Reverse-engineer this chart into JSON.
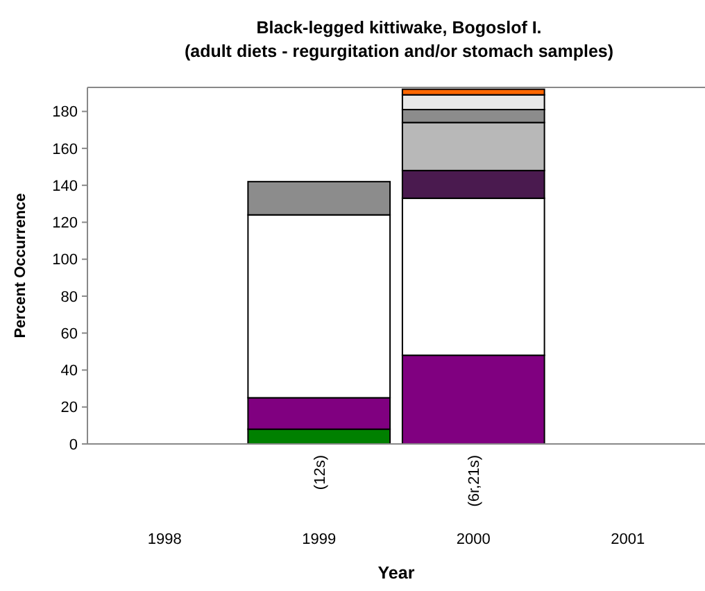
{
  "chart_data": {
    "type": "bar",
    "title": "Black-legged kittiwake, Bogoslof I.\n(adult diets - regurgitation and/or stomach samples)",
    "xlabel": "Year",
    "ylabel": "Percent Occurrence",
    "categories": [
      "1998",
      "1999",
      "2000",
      "2001"
    ],
    "stacked": true,
    "series": [
      {
        "color": "#008000",
        "values": [
          0,
          8,
          0,
          0
        ]
      },
      {
        "color": "#800080",
        "values": [
          0,
          17,
          48,
          0
        ]
      },
      {
        "color": "#ffffff",
        "values": [
          0,
          99,
          85,
          0
        ]
      },
      {
        "color": "#4a1a4f",
        "values": [
          0,
          0,
          15,
          0
        ]
      },
      {
        "color": "#b8b8b8",
        "values": [
          0,
          0,
          26,
          0
        ]
      },
      {
        "color": "#8c8c8c",
        "values": [
          0,
          18,
          7,
          0
        ]
      },
      {
        "color": "#e8e8e8",
        "values": [
          0,
          0,
          8,
          0
        ]
      },
      {
        "color": "#ff6600",
        "values": [
          0,
          0,
          3,
          0
        ]
      }
    ],
    "ylim": [
      0,
      193
    ],
    "yticks": [
      0,
      20,
      40,
      60,
      80,
      100,
      120,
      140,
      160,
      180
    ],
    "grid": false,
    "annotations": [
      "(12s)",
      "(6r,21s)"
    ]
  }
}
